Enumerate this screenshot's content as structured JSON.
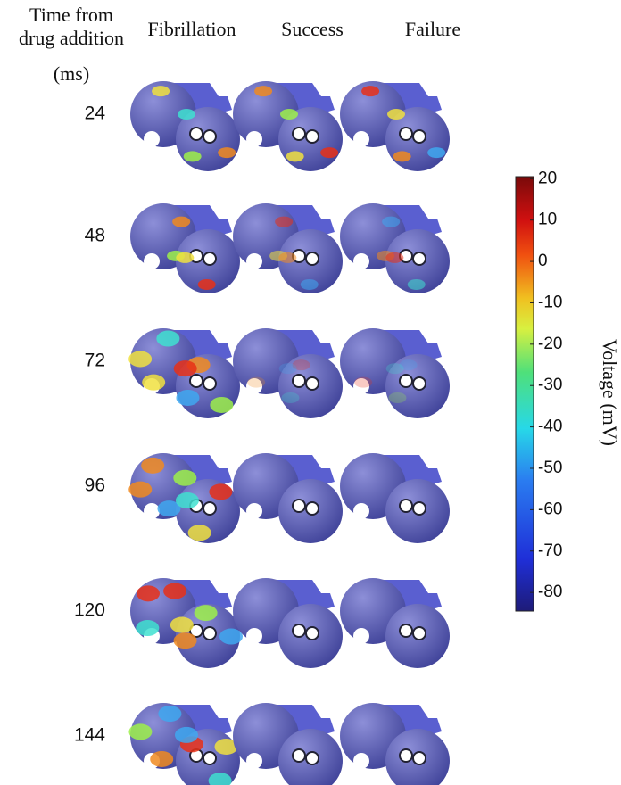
{
  "header": {
    "time_label_lines": [
      "Time from",
      "drug addition",
      "(ms)"
    ],
    "columns": [
      "Fibrillation",
      "Success",
      "Failure"
    ]
  },
  "rows": [
    24,
    48,
    72,
    96,
    120,
    144
  ],
  "colorbar": {
    "label": "Voltage (mV)",
    "lim": [
      -84.5,
      20.5
    ],
    "ticks": [
      20,
      10,
      0,
      -10,
      -20,
      -30,
      -40,
      -50,
      -60,
      -70,
      -80
    ]
  }
}
